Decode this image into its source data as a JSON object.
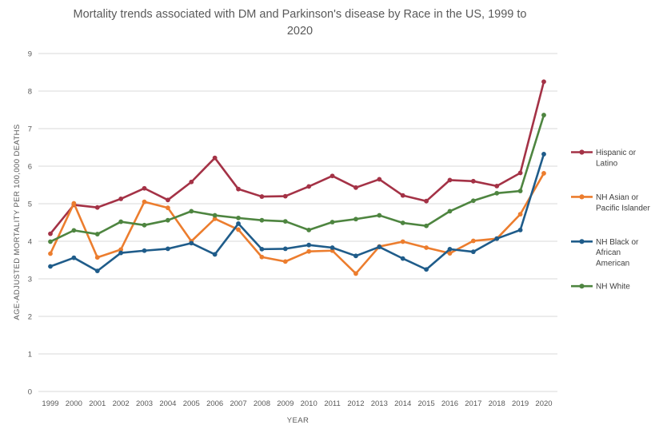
{
  "chart": {
    "title_line1": "Mortality trends associated with DM and Parkinson's disease by Race in the US, 1999 to",
    "title_line2": "2020"
  },
  "chart_data": {
    "type": "line",
    "title": "Mortality trends associated with DM and Parkinson's disease by Race in the US, 1999 to 2020",
    "xlabel": "YEAR",
    "ylabel": "AGE-ADJUSTED MORTALITY PER 100,000 DEATHS",
    "ylim": [
      0,
      9
    ],
    "yticks": [
      0,
      1,
      2,
      3,
      4,
      5,
      6,
      7,
      8,
      9
    ],
    "grid": true,
    "legend_position": "right",
    "categories": [
      1999,
      2000,
      2001,
      2002,
      2003,
      2004,
      2005,
      2006,
      2007,
      2008,
      2009,
      2010,
      2011,
      2012,
      2013,
      2014,
      2015,
      2016,
      2017,
      2018,
      2019,
      2020
    ],
    "series": [
      {
        "name": "Hispanic or Latino",
        "legend_lines": [
          "Hispanic or",
          "Latino"
        ],
        "color": "#A43246",
        "values": [
          4.2,
          4.97,
          4.9,
          5.13,
          5.41,
          5.1,
          5.58,
          6.22,
          5.39,
          5.19,
          5.2,
          5.46,
          5.74,
          5.43,
          5.65,
          5.22,
          5.07,
          5.63,
          5.6,
          5.47,
          5.82,
          8.25
        ]
      },
      {
        "name": "NH Asian or Pacific Islander",
        "legend_lines": [
          "NH Asian or",
          "Pacific Islander"
        ],
        "color": "#EC7D2E",
        "values": [
          3.67,
          5.01,
          3.57,
          3.78,
          5.05,
          4.89,
          4.0,
          4.6,
          4.31,
          3.58,
          3.46,
          3.73,
          3.75,
          3.14,
          3.86,
          3.99,
          3.83,
          3.68,
          4.01,
          4.07,
          4.72,
          5.81
        ]
      },
      {
        "name": "NH Black or African American",
        "legend_lines": [
          "NH Black or",
          "African",
          "American"
        ],
        "color": "#1F5C8A",
        "values": [
          3.33,
          3.56,
          3.21,
          3.69,
          3.75,
          3.8,
          3.95,
          3.65,
          4.47,
          3.79,
          3.8,
          3.9,
          3.83,
          3.61,
          3.85,
          3.54,
          3.25,
          3.79,
          3.72,
          4.07,
          4.3,
          6.32
        ]
      },
      {
        "name": "NH White",
        "legend_lines": [
          "NH White"
        ],
        "color": "#4E8540",
        "values": [
          3.99,
          4.29,
          4.19,
          4.52,
          4.43,
          4.56,
          4.8,
          4.69,
          4.62,
          4.56,
          4.53,
          4.3,
          4.51,
          4.59,
          4.69,
          4.49,
          4.41,
          4.8,
          5.08,
          5.28,
          5.34,
          7.36
        ]
      }
    ]
  },
  "colors": {
    "background": "#FFFFFF",
    "gridline": "#D9D9D9",
    "axis_text": "#595959",
    "title_text": "#595959",
    "legend_text": "#404040"
  }
}
